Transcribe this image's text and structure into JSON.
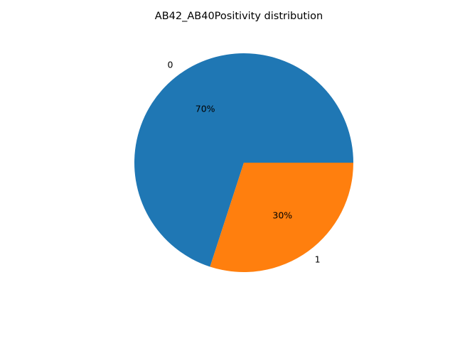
{
  "chart_data": {
    "type": "pie",
    "title": "AB42_AB40Positivity distribution",
    "categories": [
      "0",
      "1"
    ],
    "values": [
      70,
      30
    ],
    "percent_labels": [
      "70%",
      "30%"
    ],
    "colors": [
      "#1f77b4",
      "#ff7f0e"
    ],
    "start_angle_deg": 0,
    "direction": "counterclockwise",
    "legend": "none"
  }
}
